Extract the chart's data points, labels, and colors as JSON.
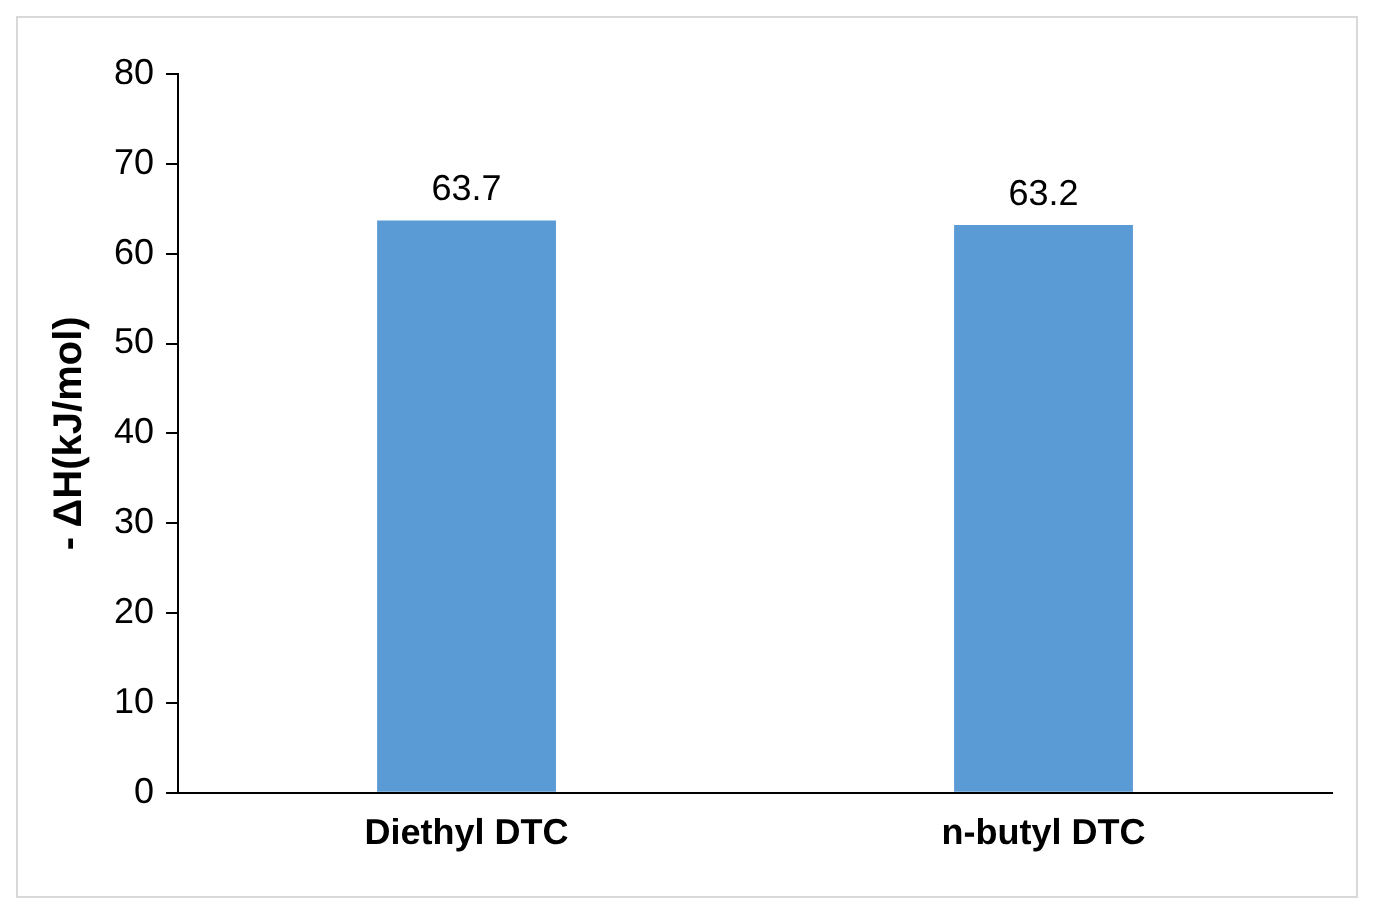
{
  "chart_data": {
    "type": "bar",
    "ylabel": "- ΔH(kJ/mol)",
    "categories": [
      "Diethyl DTC",
      "n-butyl DTC"
    ],
    "values": [
      63.7,
      63.2
    ],
    "color": "#5b9bd5",
    "ylim": [
      0,
      80
    ],
    "yticks": [
      0,
      10,
      20,
      30,
      40,
      50,
      60,
      70,
      80
    ],
    "grid": false,
    "legend": false,
    "data_labels": true
  }
}
